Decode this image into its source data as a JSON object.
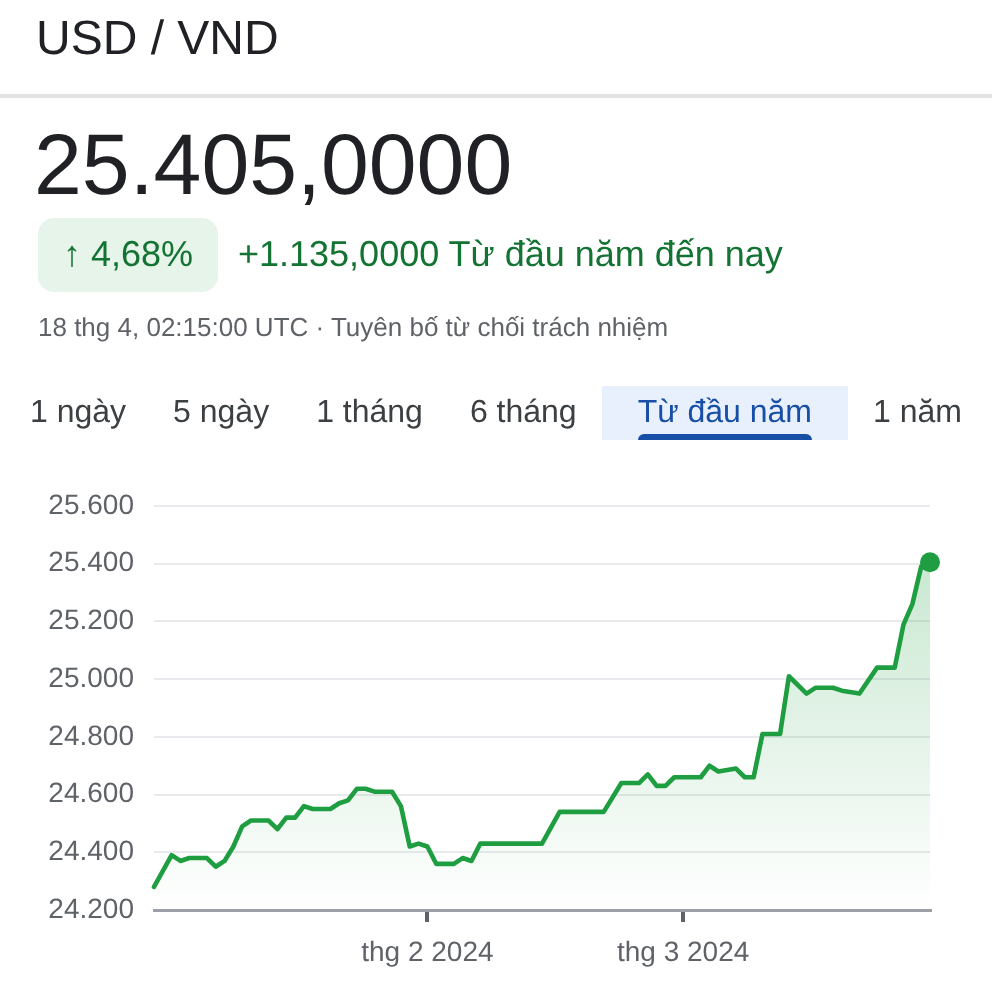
{
  "chart_data": {
    "type": "area",
    "title": "USD / VND",
    "subtitle": "25.405,0000",
    "annotations": [
      "↑ 4,68%",
      "+1.135,0000 Từ đầu năm đến nay",
      "18 thg 4, 02:15:00 UTC · Tuyên bố từ chối trách nhiệm",
      "1 ngày",
      "5 ngày",
      "1 tháng",
      "6 tháng",
      "Từ đầu năm",
      "1 năm"
    ],
    "x": [
      "2024-01-01",
      "2024-01-03",
      "2024-01-04",
      "2024-01-05",
      "2024-01-07",
      "2024-01-08",
      "2024-01-09",
      "2024-01-10",
      "2024-01-11",
      "2024-01-12",
      "2024-01-14",
      "2024-01-15",
      "2024-01-16",
      "2024-01-17",
      "2024-01-18",
      "2024-01-19",
      "2024-01-21",
      "2024-01-22",
      "2024-01-23",
      "2024-01-24",
      "2024-01-25",
      "2024-01-26",
      "2024-01-28",
      "2024-01-29",
      "2024-01-30",
      "2024-01-31",
      "2024-02-01",
      "2024-02-02",
      "2024-02-04",
      "2024-02-05",
      "2024-02-06",
      "2024-02-07",
      "2024-02-14",
      "2024-02-16",
      "2024-02-18",
      "2024-02-19",
      "2024-02-21",
      "2024-02-23",
      "2024-02-25",
      "2024-02-26",
      "2024-02-27",
      "2024-02-28",
      "2024-02-29",
      "2024-03-03",
      "2024-03-04",
      "2024-03-05",
      "2024-03-07",
      "2024-03-08",
      "2024-03-09",
      "2024-03-10",
      "2024-03-11",
      "2024-03-12",
      "2024-03-13",
      "2024-03-15",
      "2024-03-16",
      "2024-03-18",
      "2024-03-19",
      "2024-03-21",
      "2024-03-23",
      "2024-03-25",
      "2024-03-26",
      "2024-03-27",
      "2024-03-28",
      "2024-03-29"
    ],
    "values": [
      24280,
      24390,
      24370,
      24380,
      24380,
      24350,
      24370,
      24420,
      24490,
      24510,
      24510,
      24480,
      24520,
      24520,
      24560,
      24550,
      24550,
      24570,
      24580,
      24620,
      24620,
      24610,
      24610,
      24560,
      24420,
      24430,
      24420,
      24360,
      24360,
      24380,
      24370,
      24430,
      24430,
      24540,
      24540,
      24540,
      24540,
      24640,
      24640,
      24670,
      24630,
      24630,
      24660,
      24660,
      24700,
      24680,
      24690,
      24660,
      24660,
      24810,
      24810,
      24810,
      25010,
      24950,
      24970,
      24970,
      24960,
      24950,
      25040,
      25040,
      25190,
      25260,
      25390,
      25405
    ],
    "color": "#1e9e40",
    "xlim": [
      "2024-01-01",
      "2024-03-29"
    ],
    "xticks": [
      {
        "value": "2024-02-01",
        "label": "thg 2 2024"
      },
      {
        "value": "2024-03-01",
        "label": "thg 3 2024"
      }
    ],
    "ylim": [
      24200,
      25600
    ],
    "yticks": [
      {
        "value": 24200,
        "label": "24.200"
      },
      {
        "value": 24400,
        "label": "24.400"
      },
      {
        "value": 24600,
        "label": "24.600"
      },
      {
        "value": 24800,
        "label": "24.800"
      },
      {
        "value": 25000,
        "label": "25.000"
      },
      {
        "value": 25200,
        "label": "25.200"
      },
      {
        "value": 25400,
        "label": "25.400"
      },
      {
        "value": 25600,
        "label": "25.600"
      }
    ],
    "grid": "y",
    "legend": false
  }
}
